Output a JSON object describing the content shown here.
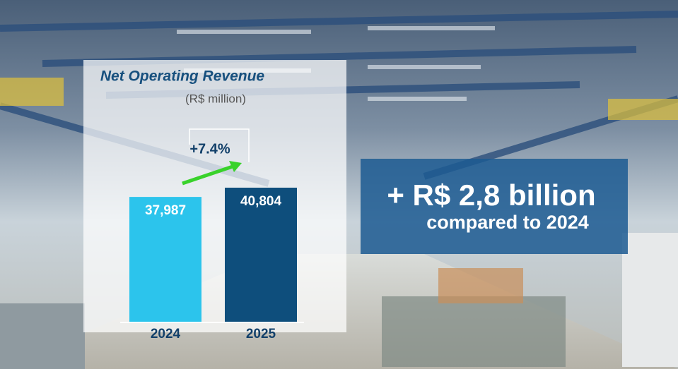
{
  "chart_data": {
    "type": "bar",
    "title": "Net Operating Revenue",
    "subtitle": "(R$ million)",
    "categories": [
      "2024",
      "2025"
    ],
    "values": [
      37987,
      40804
    ],
    "value_labels": [
      "37,987",
      "40,804"
    ],
    "colors": [
      "#2cc4ec",
      "#0e4e7c"
    ],
    "change_label": "+7.4%",
    "callout": {
      "headline": "+ R$ 2,8 billion",
      "subtext": "compared to 2024"
    }
  }
}
